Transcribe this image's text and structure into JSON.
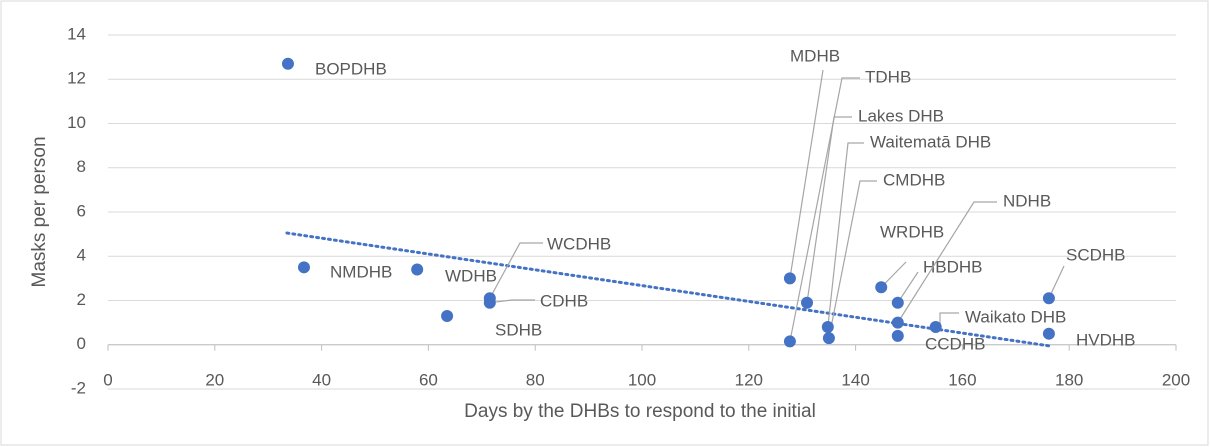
{
  "chart_data": {
    "type": "scatter",
    "xlabel": "Days by the DHBs to respond to the initial",
    "ylabel": "Masks per person",
    "xlim": [
      0,
      200
    ],
    "xticks": [
      0,
      20,
      40,
      60,
      80,
      100,
      120,
      140,
      160,
      180,
      200
    ],
    "ylim": [
      -2,
      14
    ],
    "yticks": [
      -2,
      0,
      2,
      4,
      6,
      8,
      10,
      12,
      14
    ],
    "grid": true,
    "point_labels": [
      "BOPDHB",
      "NMDHB",
      "WDHB",
      "SDHB",
      "WCDHB",
      "CDHB",
      "MDHB",
      "TDHB",
      "Lakes DHB",
      "Waitematā DHB",
      "CMDHB",
      "WRDHB",
      "HBDHB",
      "NDHB",
      "CCDHB",
      "Waikato DHB",
      "SCDHB",
      "HVDHB"
    ],
    "x": [
      33.7,
      36.7,
      57.9,
      63.5,
      71.5,
      71.5,
      127.7,
      127.7,
      130.9,
      134.8,
      135.0,
      144.8,
      147.9,
      147.9,
      147.9,
      155.0,
      176.2,
      176.2
    ],
    "series": [
      {
        "color": "#4472c4",
        "values": [
          12.7,
          3.5,
          3.4,
          1.3,
          2.1,
          1.9,
          3.0,
          0.15,
          1.9,
          0.8,
          0.3,
          2.6,
          1.9,
          1.0,
          0.4,
          0.8,
          2.1,
          0.5
        ]
      }
    ],
    "trendline": {
      "color": "#4472c4",
      "x": [
        33.5,
        176.2
      ],
      "y": [
        5.05,
        -0.05
      ]
    }
  }
}
